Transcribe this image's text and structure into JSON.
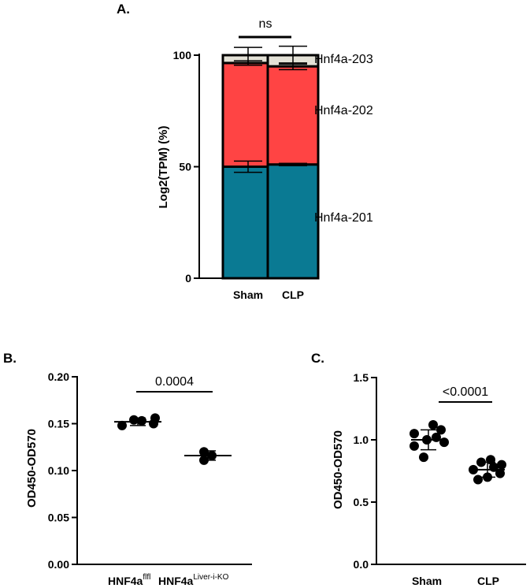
{
  "chart_data": [
    {
      "panel": "A.",
      "type": "bar",
      "stacked": true,
      "categories": [
        "Sham",
        "CLP"
      ],
      "ylabel": "Log2(TPM) (%)",
      "ylim": [
        0,
        100
      ],
      "yticks": [
        0,
        50,
        100
      ],
      "series": [
        {
          "name": "Hnf4a-201",
          "values": [
            50,
            51
          ],
          "errors": [
            2.5,
            0.5
          ]
        },
        {
          "name": "Hnf4a-202",
          "values": [
            46.5,
            44
          ],
          "errors": [
            1,
            1.5
          ]
        },
        {
          "name": "Hnf4a-203",
          "values": [
            3.5,
            5
          ],
          "errors": [
            3.5,
            4
          ]
        }
      ],
      "colors": {
        "Hnf4a-201": "#0a7a93",
        "Hnf4a-202": "#ff4444",
        "Hnf4a-203": "#e3e1d6"
      },
      "significance": {
        "label": "ns"
      }
    },
    {
      "panel": "B.",
      "type": "scatter",
      "categories": [
        "HNF4a",
        "HNF4a"
      ],
      "category_superscripts": [
        "flfl",
        "Liver-i-KO"
      ],
      "ylabel": "OD450-OD570",
      "ylim": [
        0,
        0.2
      ],
      "yticks": [
        "0.00",
        "0.05",
        "0.10",
        "0.15",
        "0.20"
      ],
      "groups": [
        {
          "points": [
            0.148,
            0.15,
            0.153,
            0.154,
            0.156
          ],
          "mean": 0.152,
          "sd": 0.004
        },
        {
          "points": [
            0.111,
            0.116,
            0.12
          ],
          "mean": 0.116,
          "sd": 0.005
        }
      ],
      "significance": {
        "label": "0.0004"
      }
    },
    {
      "panel": "C.",
      "type": "scatter",
      "categories": [
        "Sham",
        "CLP"
      ],
      "ylabel": "OD450-OD570",
      "ylim": [
        0,
        1.5
      ],
      "yticks": [
        "0.0",
        "0.5",
        "1.0",
        "1.5"
      ],
      "groups": [
        {
          "points": [
            0.86,
            0.95,
            0.98,
            1.0,
            1.02,
            1.05,
            1.08,
            1.12
          ],
          "mean": 1.0,
          "sd": 0.08
        },
        {
          "points": [
            0.68,
            0.7,
            0.73,
            0.76,
            0.78,
            0.8,
            0.82,
            0.84
          ],
          "mean": 0.76,
          "sd": 0.06
        }
      ],
      "significance": {
        "label": "<0.0001"
      }
    }
  ]
}
